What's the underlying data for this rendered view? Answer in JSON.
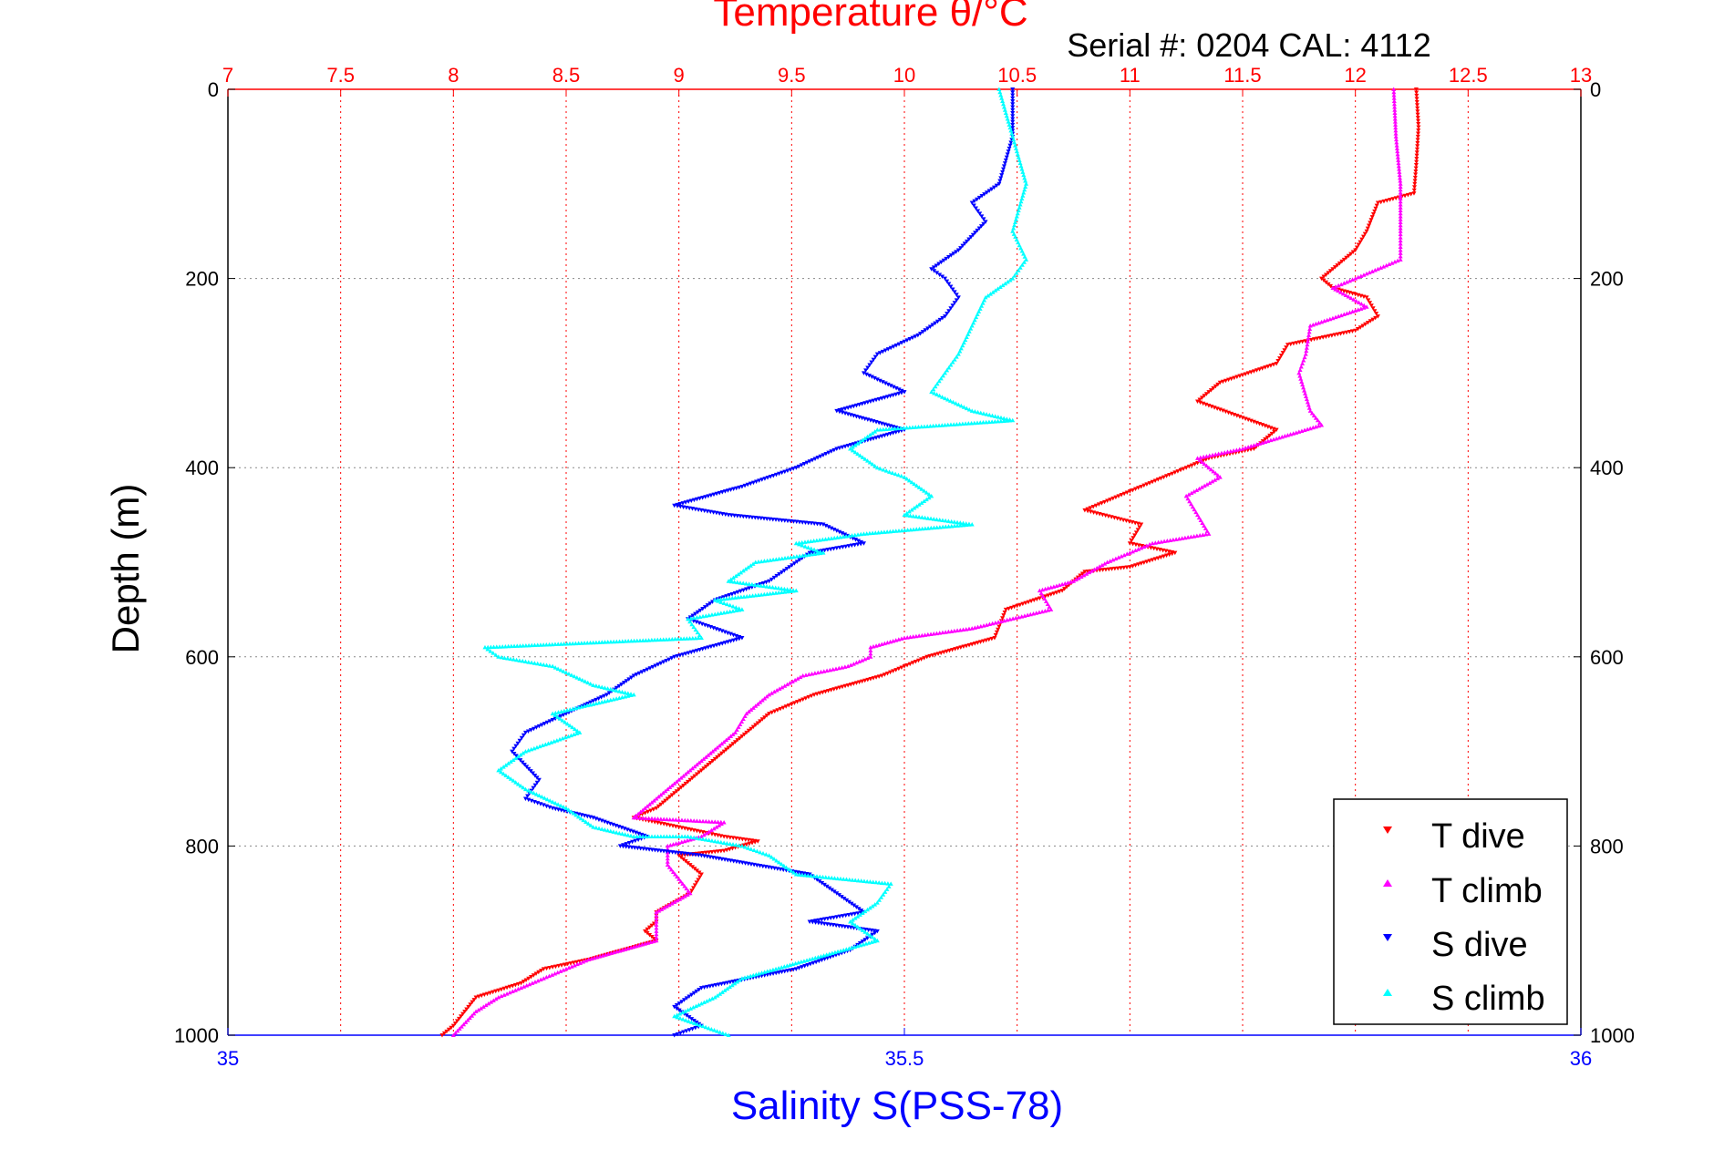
{
  "chart_data": {
    "type": "scatter",
    "top_axis_title": "Temperature θ/°C",
    "serial_label": "Serial #: 0204  CAL: 4112",
    "ylabel": "Depth (m)",
    "xlabel": "Salinity S(PSS-78)",
    "top_axis": {
      "min": 7,
      "max": 13,
      "ticks": [
        "7",
        "7.5",
        "8",
        "8.5",
        "9",
        "9.5",
        "10",
        "10.5",
        "11",
        "11.5",
        "12",
        "12.5",
        "13"
      ]
    },
    "bottom_axis": {
      "min": 35,
      "max": 36,
      "ticks": [
        "35",
        "35.5",
        "36"
      ]
    },
    "y_axis": {
      "min": 0,
      "max": 1000,
      "reversed": true,
      "ticks": [
        "0",
        "200",
        "400",
        "600",
        "800",
        "1000"
      ]
    },
    "grid": true,
    "legend_position": "bottom-right",
    "colors": {
      "top_axis": "#ff0000",
      "bottom_axis": "#0000ff",
      "grid": "#888888"
    },
    "series": [
      {
        "name": "T dive",
        "axis": "top",
        "color": "#ff0000",
        "marker": "triangle-down",
        "points": [
          [
            12.27,
            0
          ],
          [
            12.28,
            40
          ],
          [
            12.27,
            80
          ],
          [
            12.26,
            110
          ],
          [
            12.1,
            120
          ],
          [
            12.05,
            150
          ],
          [
            12.0,
            170
          ],
          [
            11.95,
            180
          ],
          [
            11.85,
            200
          ],
          [
            11.9,
            210
          ],
          [
            12.05,
            220
          ],
          [
            12.1,
            240
          ],
          [
            12.0,
            255
          ],
          [
            11.7,
            270
          ],
          [
            11.65,
            290
          ],
          [
            11.4,
            310
          ],
          [
            11.3,
            330
          ],
          [
            11.65,
            360
          ],
          [
            11.55,
            380
          ],
          [
            11.35,
            390
          ],
          [
            11.15,
            410
          ],
          [
            10.95,
            430
          ],
          [
            10.8,
            445
          ],
          [
            11.05,
            460
          ],
          [
            11.0,
            480
          ],
          [
            11.2,
            490
          ],
          [
            11.0,
            505
          ],
          [
            10.8,
            510
          ],
          [
            10.7,
            530
          ],
          [
            10.45,
            550
          ],
          [
            10.4,
            580
          ],
          [
            10.1,
            600
          ],
          [
            9.9,
            620
          ],
          [
            9.6,
            640
          ],
          [
            9.4,
            660
          ],
          [
            9.3,
            680
          ],
          [
            9.1,
            720
          ],
          [
            8.9,
            760
          ],
          [
            8.8,
            770
          ],
          [
            9.0,
            780
          ],
          [
            9.2,
            790
          ],
          [
            9.35,
            795
          ],
          [
            9.2,
            805
          ],
          [
            9.0,
            810
          ],
          [
            9.1,
            830
          ],
          [
            9.05,
            850
          ],
          [
            8.9,
            870
          ],
          [
            8.9,
            880
          ],
          [
            8.85,
            890
          ],
          [
            8.9,
            900
          ],
          [
            8.6,
            920
          ],
          [
            8.4,
            930
          ],
          [
            8.3,
            945
          ],
          [
            8.1,
            960
          ],
          [
            8.05,
            975
          ],
          [
            8.0,
            990
          ],
          [
            7.95,
            1000
          ]
        ]
      },
      {
        "name": "T climb",
        "axis": "top",
        "color": "#ff00ff",
        "marker": "triangle-up",
        "points": [
          [
            12.17,
            0
          ],
          [
            12.18,
            50
          ],
          [
            12.2,
            100
          ],
          [
            12.2,
            150
          ],
          [
            12.2,
            180
          ],
          [
            12.0,
            200
          ],
          [
            11.9,
            210
          ],
          [
            12.05,
            230
          ],
          [
            11.8,
            250
          ],
          [
            11.78,
            280
          ],
          [
            11.75,
            300
          ],
          [
            11.8,
            340
          ],
          [
            11.85,
            355
          ],
          [
            11.5,
            380
          ],
          [
            11.3,
            390
          ],
          [
            11.4,
            410
          ],
          [
            11.25,
            430
          ],
          [
            11.3,
            450
          ],
          [
            11.35,
            470
          ],
          [
            11.1,
            480
          ],
          [
            10.9,
            500
          ],
          [
            10.75,
            520
          ],
          [
            10.6,
            530
          ],
          [
            10.65,
            550
          ],
          [
            10.3,
            570
          ],
          [
            10.0,
            580
          ],
          [
            9.85,
            590
          ],
          [
            9.85,
            600
          ],
          [
            9.75,
            610
          ],
          [
            9.55,
            620
          ],
          [
            9.4,
            640
          ],
          [
            9.3,
            660
          ],
          [
            9.25,
            680
          ],
          [
            9.15,
            700
          ],
          [
            9.05,
            720
          ],
          [
            8.95,
            740
          ],
          [
            8.85,
            760
          ],
          [
            8.8,
            770
          ],
          [
            9.2,
            775
          ],
          [
            9.1,
            790
          ],
          [
            8.95,
            800
          ],
          [
            8.95,
            820
          ],
          [
            9.05,
            850
          ],
          [
            8.9,
            870
          ],
          [
            8.9,
            890
          ],
          [
            8.9,
            900
          ],
          [
            8.6,
            920
          ],
          [
            8.4,
            940
          ],
          [
            8.2,
            960
          ],
          [
            8.1,
            975
          ],
          [
            8.0,
            1000
          ]
        ]
      },
      {
        "name": "S dive",
        "axis": "bottom",
        "color": "#0000ff",
        "marker": "triangle-down",
        "points": [
          [
            35.58,
            0
          ],
          [
            35.58,
            50
          ],
          [
            35.57,
            100
          ],
          [
            35.55,
            120
          ],
          [
            35.56,
            140
          ],
          [
            35.54,
            170
          ],
          [
            35.52,
            190
          ],
          [
            35.53,
            200
          ],
          [
            35.54,
            220
          ],
          [
            35.53,
            240
          ],
          [
            35.51,
            260
          ],
          [
            35.48,
            280
          ],
          [
            35.47,
            300
          ],
          [
            35.5,
            320
          ],
          [
            35.45,
            340
          ],
          [
            35.5,
            360
          ],
          [
            35.45,
            380
          ],
          [
            35.42,
            400
          ],
          [
            35.38,
            420
          ],
          [
            35.33,
            440
          ],
          [
            35.37,
            450
          ],
          [
            35.44,
            460
          ],
          [
            35.47,
            480
          ],
          [
            35.43,
            490
          ],
          [
            35.4,
            520
          ],
          [
            35.36,
            540
          ],
          [
            35.34,
            560
          ],
          [
            35.38,
            580
          ],
          [
            35.33,
            600
          ],
          [
            35.3,
            620
          ],
          [
            35.28,
            640
          ],
          [
            35.25,
            660
          ],
          [
            35.22,
            680
          ],
          [
            35.21,
            700
          ],
          [
            35.23,
            730
          ],
          [
            35.22,
            750
          ],
          [
            35.24,
            760
          ],
          [
            35.27,
            770
          ],
          [
            35.31,
            790
          ],
          [
            35.29,
            800
          ],
          [
            35.35,
            810
          ],
          [
            35.43,
            830
          ],
          [
            35.45,
            850
          ],
          [
            35.47,
            870
          ],
          [
            35.43,
            880
          ],
          [
            35.48,
            890
          ],
          [
            35.46,
            910
          ],
          [
            35.42,
            930
          ],
          [
            35.35,
            950
          ],
          [
            35.33,
            970
          ],
          [
            35.35,
            990
          ],
          [
            35.33,
            1000
          ]
        ]
      },
      {
        "name": "S climb",
        "axis": "bottom",
        "color": "#00ffff",
        "marker": "triangle-up",
        "points": [
          [
            35.57,
            0
          ],
          [
            35.58,
            50
          ],
          [
            35.59,
            100
          ],
          [
            35.58,
            150
          ],
          [
            35.59,
            180
          ],
          [
            35.58,
            200
          ],
          [
            35.56,
            220
          ],
          [
            35.55,
            250
          ],
          [
            35.54,
            280
          ],
          [
            35.53,
            300
          ],
          [
            35.52,
            320
          ],
          [
            35.55,
            340
          ],
          [
            35.58,
            350
          ],
          [
            35.48,
            360
          ],
          [
            35.46,
            380
          ],
          [
            35.48,
            400
          ],
          [
            35.5,
            410
          ],
          [
            35.52,
            430
          ],
          [
            35.5,
            450
          ],
          [
            35.55,
            460
          ],
          [
            35.47,
            470
          ],
          [
            35.42,
            480
          ],
          [
            35.44,
            490
          ],
          [
            35.39,
            500
          ],
          [
            35.37,
            520
          ],
          [
            35.42,
            530
          ],
          [
            35.36,
            540
          ],
          [
            35.38,
            550
          ],
          [
            35.34,
            560
          ],
          [
            35.35,
            580
          ],
          [
            35.19,
            590
          ],
          [
            35.2,
            600
          ],
          [
            35.24,
            610
          ],
          [
            35.27,
            630
          ],
          [
            35.3,
            640
          ],
          [
            35.24,
            660
          ],
          [
            35.26,
            680
          ],
          [
            35.22,
            700
          ],
          [
            35.2,
            720
          ],
          [
            35.22,
            740
          ],
          [
            35.25,
            760
          ],
          [
            35.27,
            780
          ],
          [
            35.3,
            790
          ],
          [
            35.34,
            790
          ],
          [
            35.38,
            800
          ],
          [
            35.4,
            810
          ],
          [
            35.42,
            830
          ],
          [
            35.49,
            840
          ],
          [
            35.48,
            860
          ],
          [
            35.46,
            880
          ],
          [
            35.48,
            900
          ],
          [
            35.43,
            920
          ],
          [
            35.38,
            940
          ],
          [
            35.36,
            960
          ],
          [
            35.33,
            980
          ],
          [
            35.37,
            1000
          ]
        ]
      }
    ]
  }
}
